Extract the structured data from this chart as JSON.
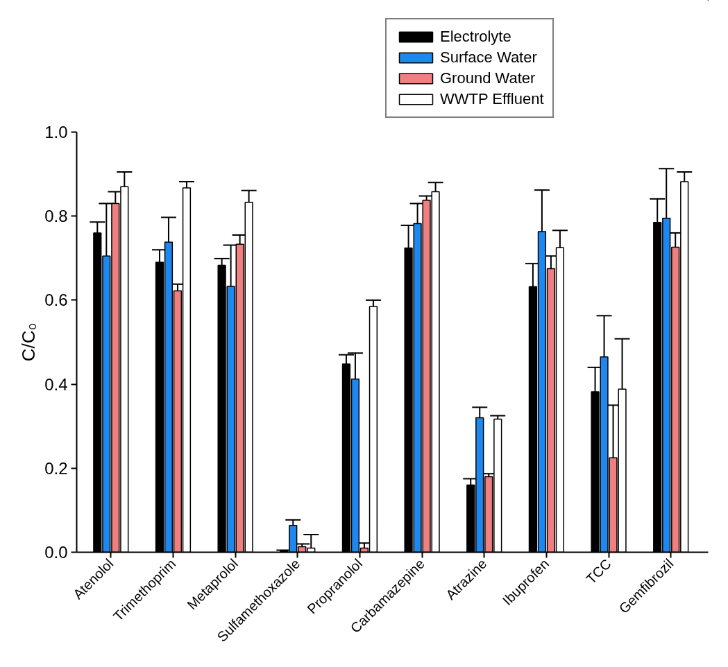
{
  "chart_data": {
    "type": "bar",
    "ylabel": "C/C₀",
    "categories": [
      "Atenolol",
      "Trimethoprim",
      "Metaprolol",
      "Sulfamethoxazole",
      "Propranolol",
      "Carbamazepine",
      "Atrazine",
      "Ibuprofen",
      "TCC",
      "Gemfibrozil"
    ],
    "series": [
      {
        "name": "Electrolyte",
        "color": "#000000",
        "values": [
          0.76,
          0.69,
          0.683,
          0.003,
          0.448,
          0.724,
          0.16,
          0.632,
          0.382,
          0.785
        ],
        "errors": [
          [
            0.76,
            0.786
          ],
          [
            0.69,
            0.72
          ],
          [
            0.683,
            0.699
          ],
          [
            0.003,
            0.005
          ],
          [
            0.448,
            0.47
          ],
          [
            0.724,
            0.778
          ],
          [
            0.16,
            0.175
          ],
          [
            0.632,
            0.687
          ],
          [
            0.382,
            0.44
          ],
          [
            0.785,
            0.841
          ]
        ]
      },
      {
        "name": "Surface Water",
        "color": "#1e88f0",
        "values": [
          0.705,
          0.738,
          0.633,
          0.064,
          0.412,
          0.782,
          0.32,
          0.763,
          0.465,
          0.795
        ],
        "errors": [
          [
            0.705,
            0.83
          ],
          [
            0.738,
            0.797
          ],
          [
            0.633,
            0.731
          ],
          [
            0.064,
            0.077
          ],
          [
            0.412,
            0.474
          ],
          [
            0.782,
            0.83
          ],
          [
            0.32,
            0.345
          ],
          [
            0.763,
            0.862
          ],
          [
            0.465,
            0.563
          ],
          [
            0.795,
            0.913
          ]
        ]
      },
      {
        "name": "Ground Water",
        "color": "#f08080",
        "values": [
          0.83,
          0.622,
          0.733,
          0.013,
          0.01,
          0.838,
          0.18,
          0.675,
          0.225,
          0.726
        ],
        "errors": [
          [
            0.83,
            0.858
          ],
          [
            0.622,
            0.638
          ],
          [
            0.733,
            0.755
          ],
          [
            0.013,
            0.02
          ],
          [
            0.01,
            0.022
          ],
          [
            0.838,
            0.848
          ],
          [
            0.18,
            0.187
          ],
          [
            0.675,
            0.705
          ],
          [
            0.225,
            0.35
          ],
          [
            0.726,
            0.76
          ]
        ]
      },
      {
        "name": "WWTP Effluent",
        "color": "#ffffff",
        "values": [
          0.87,
          0.867,
          0.833,
          0.01,
          0.585,
          0.858,
          0.317,
          0.725,
          0.388,
          0.882
        ],
        "errors": [
          [
            0.87,
            0.905
          ],
          [
            0.867,
            0.882
          ],
          [
            0.833,
            0.861
          ],
          [
            0.01,
            0.042
          ],
          [
            0.585,
            0.6
          ],
          [
            0.858,
            0.88
          ],
          [
            0.317,
            0.325
          ],
          [
            0.725,
            0.766
          ],
          [
            0.388,
            0.508
          ],
          [
            0.882,
            0.905
          ]
        ]
      }
    ],
    "ylim": [
      0,
      1.0
    ],
    "yticks": [
      {
        "value": 0,
        "label": "0.0"
      },
      {
        "value": 0.2,
        "label": "0.2"
      },
      {
        "value": 0.4,
        "label": "0.4"
      },
      {
        "value": 0.6,
        "label": "0.6"
      },
      {
        "value": 0.8,
        "label": "0.8"
      },
      {
        "value": 1.0,
        "label": "1.0"
      }
    ],
    "grid": false,
    "legend": "top"
  }
}
